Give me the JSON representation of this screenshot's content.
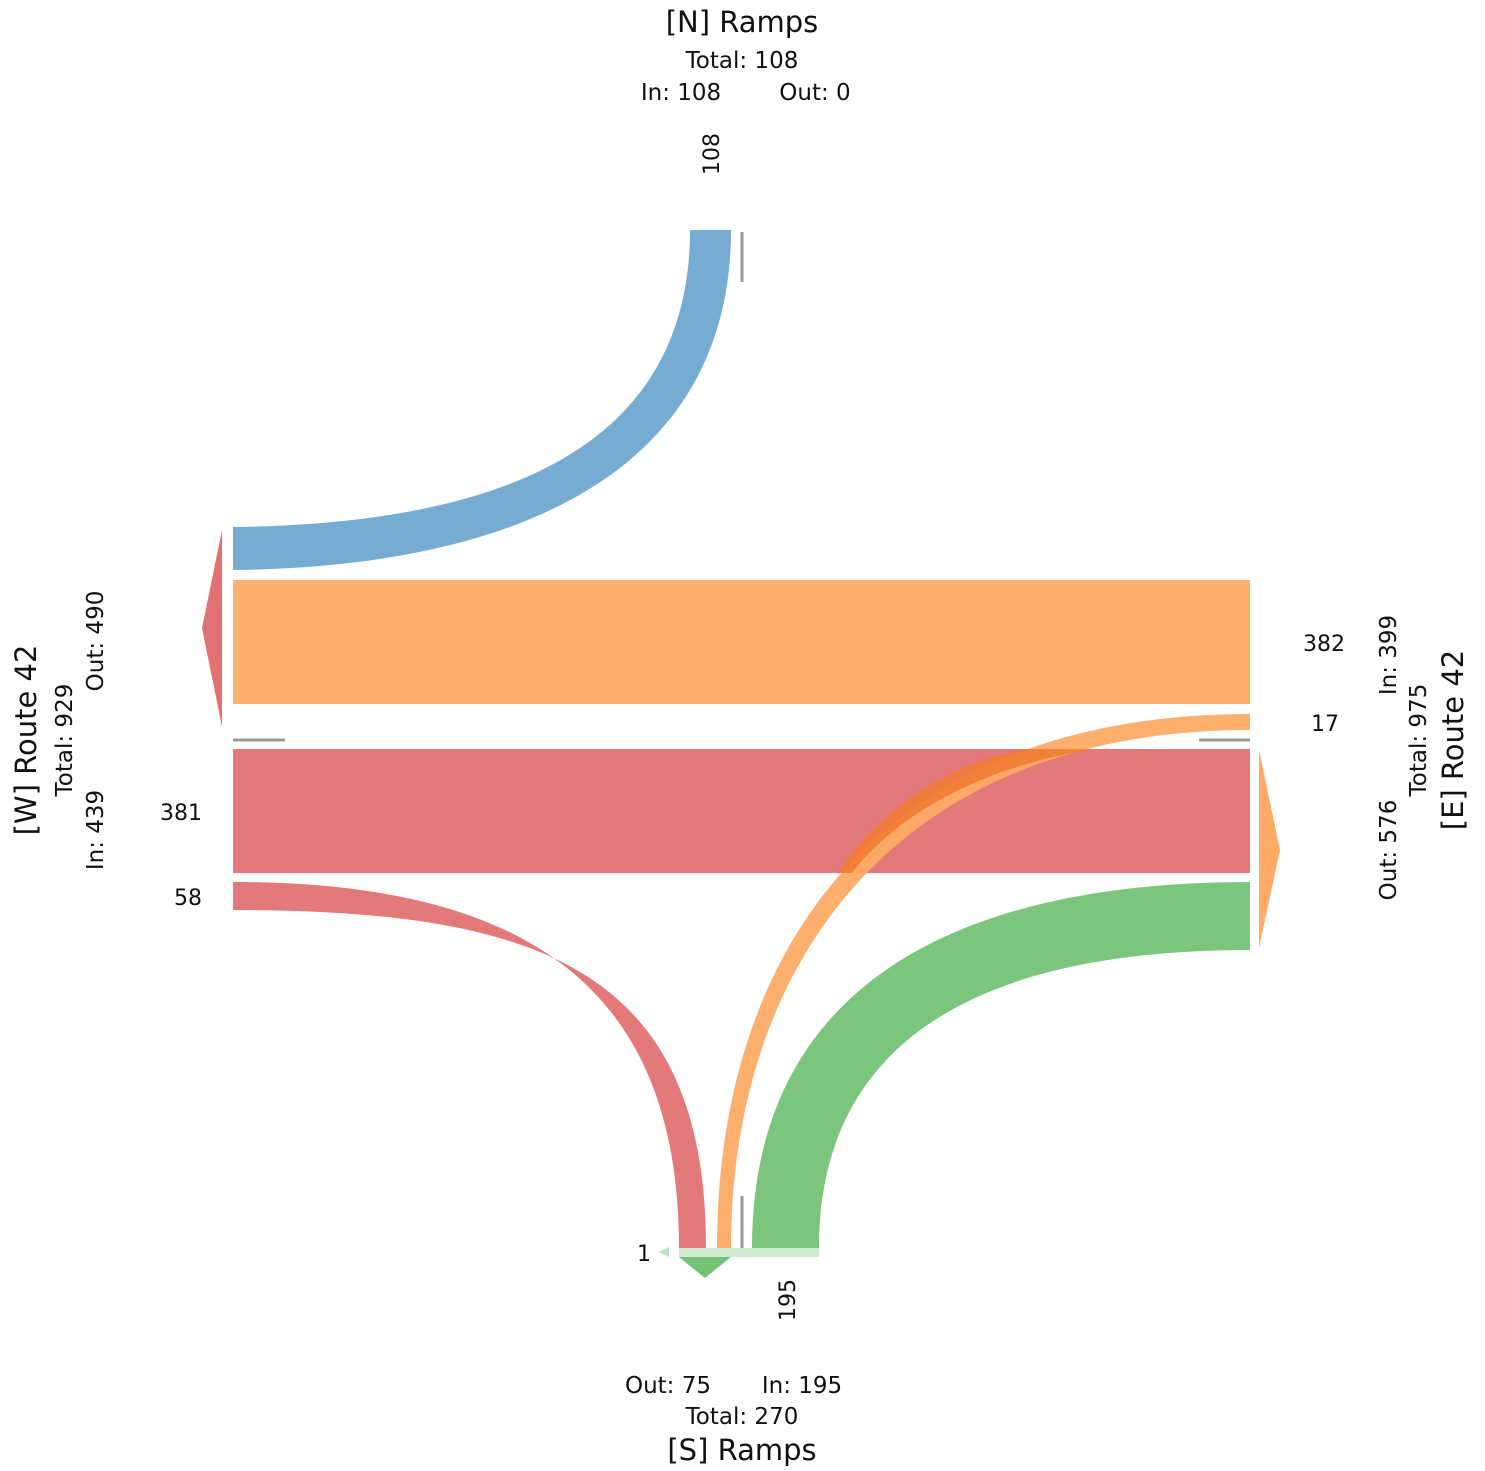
{
  "approaches": {
    "north": {
      "name": "[N] Ramps",
      "total_label": "Total: 108",
      "in_label": "In: 108",
      "out_label": "Out: 0"
    },
    "south": {
      "name": "[S] Ramps",
      "total_label": "Total: 270",
      "in_label": "In: 195",
      "out_label": "Out: 75"
    },
    "west": {
      "name": "[W] Route 42",
      "total_label": "Total: 929",
      "in_label": "In: 439",
      "out_label": "Out: 490"
    },
    "east": {
      "name": "[E] Route 42",
      "total_label": "Total: 975",
      "in_label": "In: 399",
      "out_label": "Out: 576"
    }
  },
  "movement_labels": {
    "north_in": "108",
    "west_thru": "381",
    "west_right": "58",
    "east_thru": "382",
    "east_left": "17",
    "south_in": "195",
    "south_uturn": "1"
  },
  "colors": {
    "north": "#6fa8d0",
    "west": "#e27272",
    "east": "#fdab66",
    "south": "#74c375",
    "crossing": "#f07a30",
    "divider": "#999999"
  }
}
